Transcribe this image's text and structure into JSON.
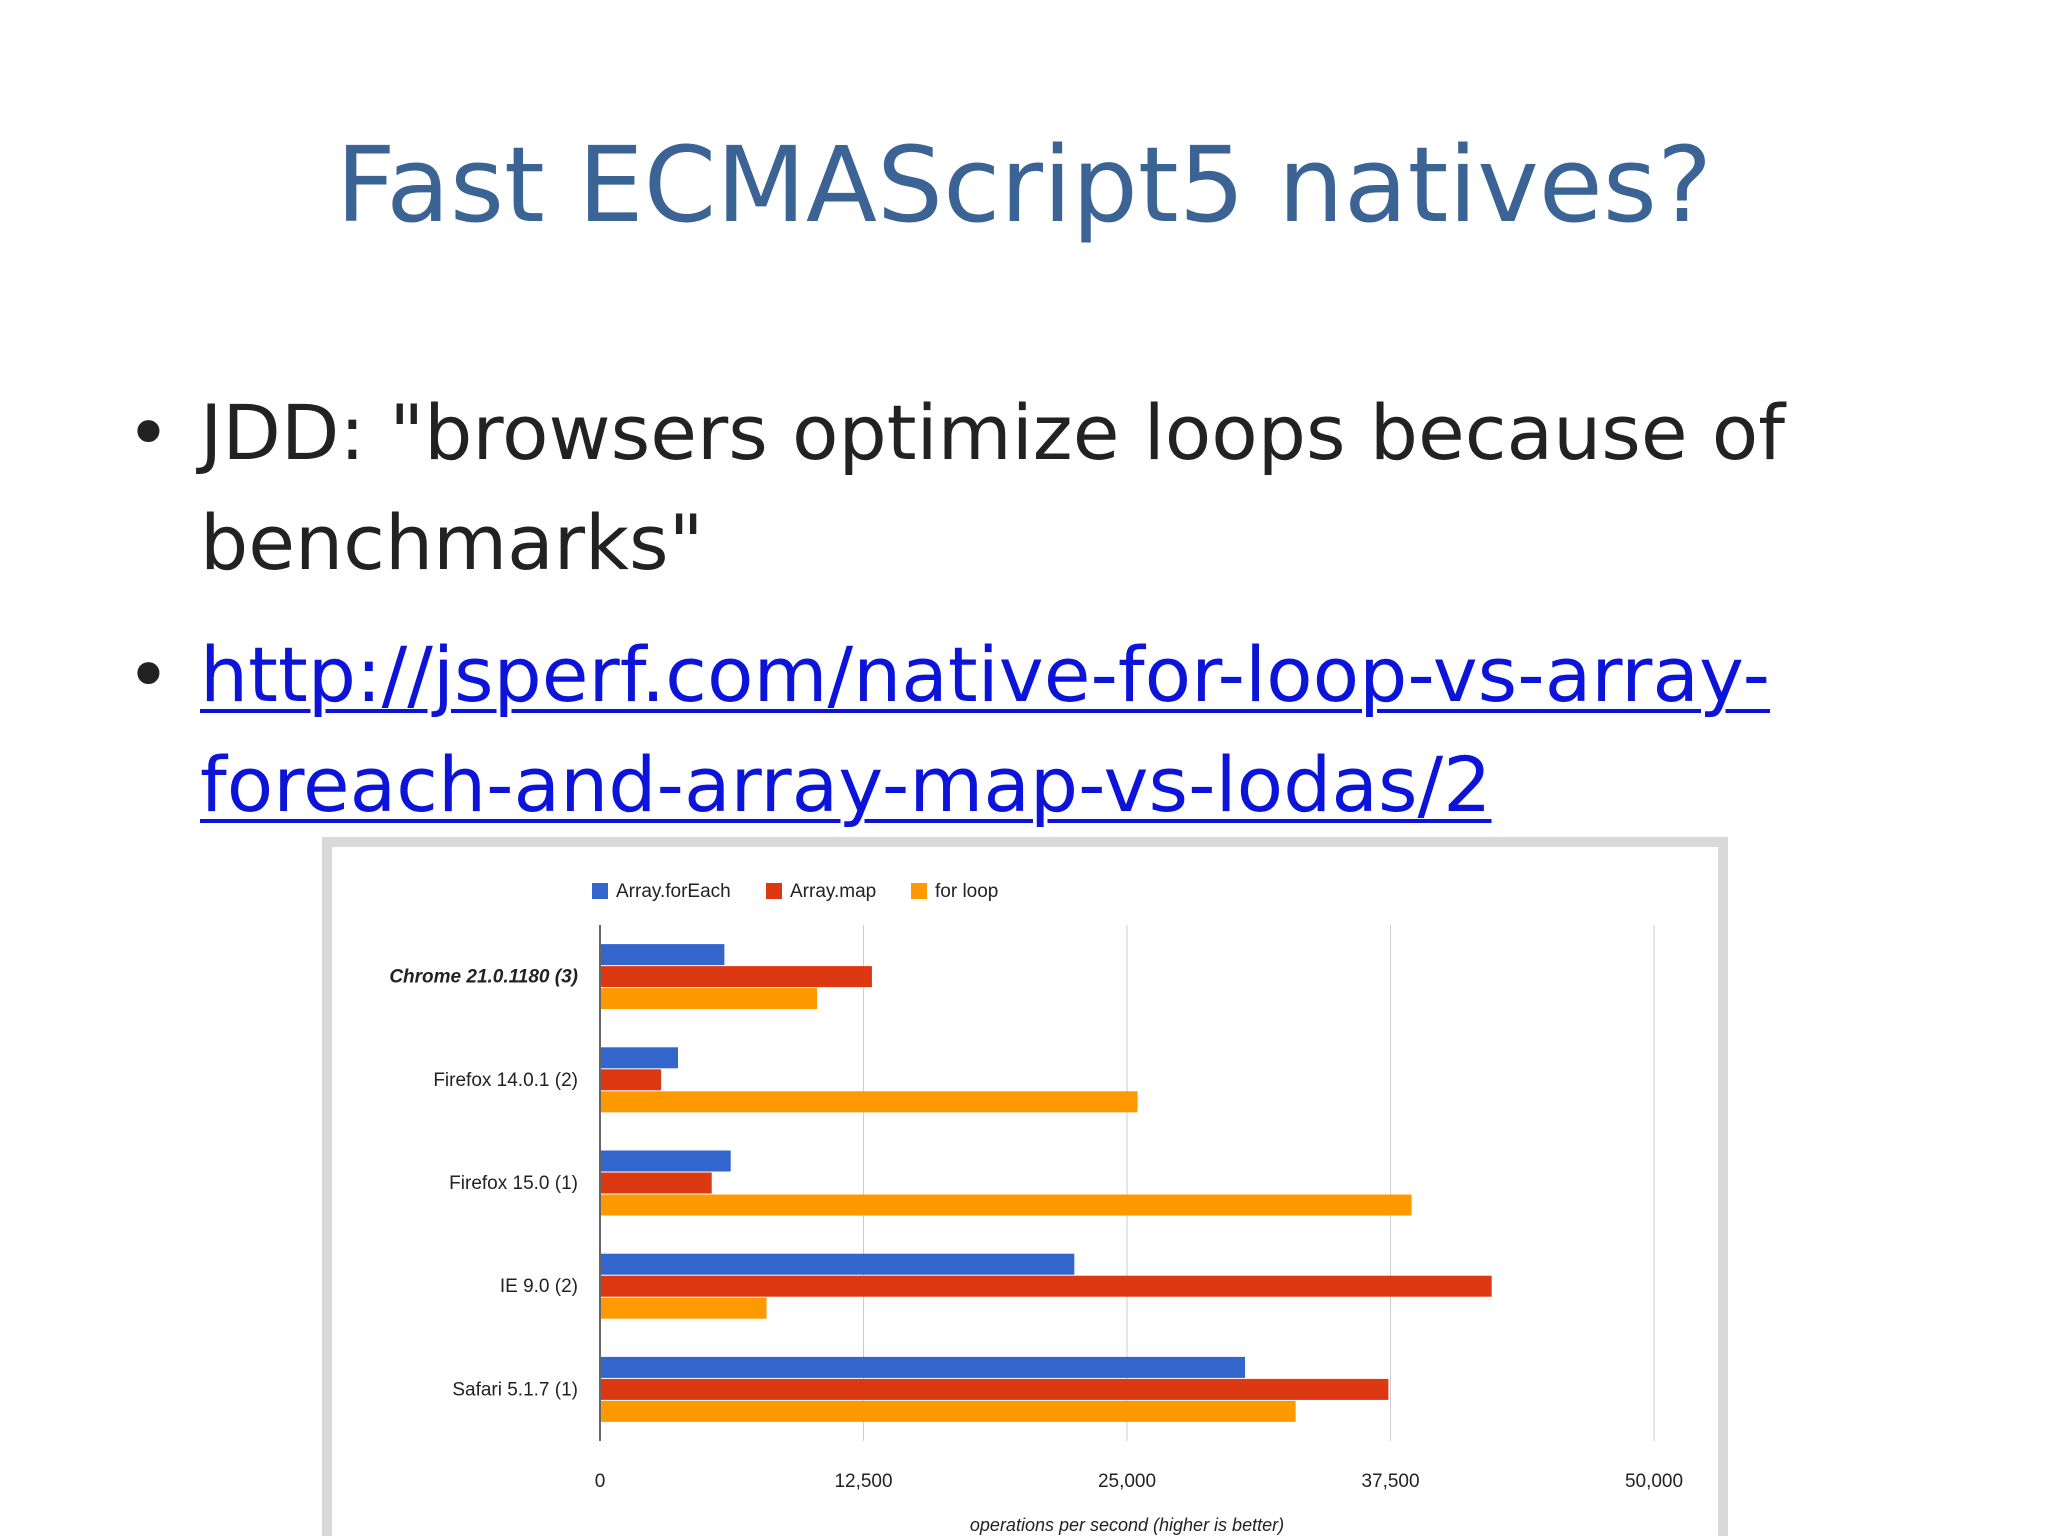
{
  "slide": {
    "title": "Fast ECMAScript5 natives?",
    "bullets": [
      {
        "text": "JDD: \"browsers optimize loops because of benchmarks\"",
        "link": false
      },
      {
        "text": "http://jsperf.com/native-for-loop-vs-array-foreach-and-array-map-vs-lodas/2",
        "link": true
      }
    ]
  },
  "chart_data": {
    "type": "bar",
    "orientation": "horizontal",
    "categories": [
      "Chrome 21.0.1180 (3)",
      "Firefox 14.0.1 (2)",
      "Firefox 15.0 (1)",
      "IE 9.0 (2)",
      "Safari 5.1.7 (1)"
    ],
    "highlighted_category": "Chrome 21.0.1180 (3)",
    "series": [
      {
        "name": "Array.forEach",
        "color": "#3366cc",
        "values": [
          5900,
          3700,
          6200,
          22500,
          30600
        ]
      },
      {
        "name": "Array.map",
        "color": "#dc3912",
        "values": [
          12900,
          2900,
          5300,
          42300,
          37400
        ]
      },
      {
        "name": "for loop",
        "color": "#ff9900",
        "values": [
          10300,
          25500,
          38500,
          7900,
          33000
        ]
      }
    ],
    "xlim": [
      0,
      50000
    ],
    "xticks": [
      "0",
      "12,500",
      "25,000",
      "37,500",
      "50,000"
    ],
    "xtick_values": [
      0,
      12500,
      25000,
      37500,
      50000
    ],
    "xlabel": "operations per second (higher is better)",
    "legend_position": "top",
    "grid": true
  }
}
